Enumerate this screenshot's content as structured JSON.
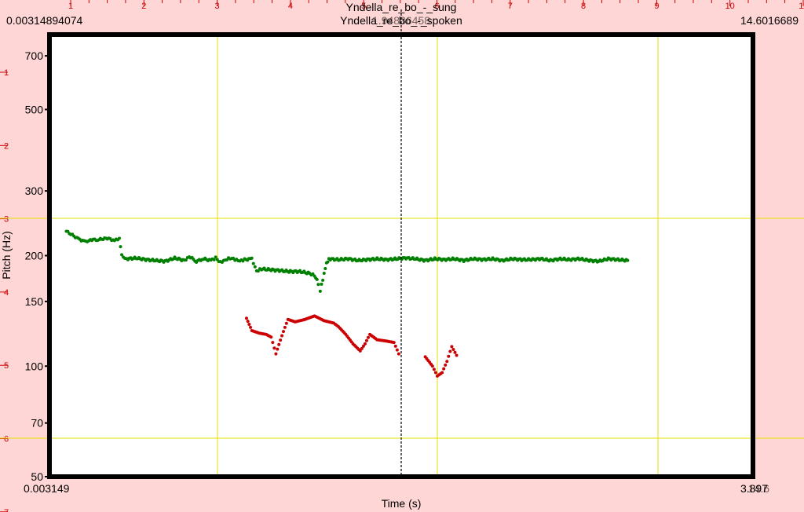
{
  "chart_data": {
    "type": "scatter",
    "title_lines": [
      "Yndella_re_bo_-_sung",
      "Yndella_re_bo_-_spoken"
    ],
    "cursor_time_label": "1.94836458",
    "top_left_time": "0.00314894074",
    "top_right_time": "14.6016689",
    "bottom_left_time": "0.003149",
    "bottom_right_time": "3.897",
    "bottom_right_time_overlap": "14.6",
    "xlabel": "Time (s)",
    "ylabel": "Pitch (Hz)",
    "y_scale": "log",
    "ylim": [
      50,
      800
    ],
    "y_ticks": [
      {
        "value": 50,
        "label": "50"
      },
      {
        "value": 70,
        "label": "70"
      },
      {
        "value": 100,
        "label": "100"
      },
      {
        "value": 150,
        "label": "150"
      },
      {
        "value": 200,
        "label": "200"
      },
      {
        "value": 300,
        "label": "300"
      },
      {
        "value": 500,
        "label": "500"
      },
      {
        "value": 700,
        "label": "700"
      }
    ],
    "top_ruler_labels": [
      "1",
      "2",
      "3",
      "4",
      "5",
      "6",
      "7",
      "8",
      "9",
      "10",
      "11"
    ],
    "left_ruler_labels": [
      "1",
      "2",
      "3",
      "4",
      "5",
      "6",
      "7"
    ],
    "grid": true,
    "series": [
      {
        "color": "#008000",
        "points": [
          [
            0.35,
            233
          ],
          [
            0.6,
            222
          ],
          [
            0.75,
            218
          ],
          [
            0.85,
            221
          ],
          [
            1.0,
            221
          ],
          [
            1.2,
            223
          ],
          [
            1.35,
            220
          ],
          [
            1.45,
            222
          ],
          [
            1.5,
            200
          ],
          [
            1.6,
            196
          ],
          [
            1.8,
            197
          ],
          [
            2.0,
            195
          ],
          [
            2.2,
            194
          ],
          [
            2.4,
            193
          ],
          [
            2.6,
            197
          ],
          [
            2.8,
            194
          ],
          [
            2.9,
            199
          ],
          [
            3.05,
            193
          ],
          [
            3.2,
            196
          ],
          [
            3.35,
            194
          ],
          [
            3.45,
            197
          ],
          [
            3.55,
            192
          ],
          [
            3.65,
            195
          ],
          [
            3.75,
            197
          ],
          [
            3.85,
            195
          ],
          [
            3.95,
            193
          ],
          [
            4.05,
            195
          ],
          [
            4.2,
            196
          ],
          [
            4.3,
            182
          ],
          [
            4.4,
            184
          ],
          [
            4.6,
            183
          ],
          [
            4.8,
            182
          ],
          [
            5.0,
            181
          ],
          [
            5.2,
            181
          ],
          [
            5.4,
            179
          ],
          [
            5.5,
            177
          ],
          [
            5.58,
            168
          ],
          [
            5.62,
            160
          ],
          [
            5.7,
            178
          ],
          [
            5.75,
            190
          ],
          [
            5.8,
            196
          ],
          [
            6.0,
            195
          ],
          [
            6.2,
            196
          ],
          [
            6.4,
            194
          ],
          [
            6.6,
            195
          ],
          [
            6.8,
            196
          ],
          [
            7.0,
            195
          ],
          [
            7.2,
            196
          ],
          [
            7.4,
            197
          ],
          [
            7.6,
            196
          ],
          [
            7.8,
            194
          ],
          [
            8.0,
            196
          ],
          [
            8.2,
            195
          ],
          [
            8.4,
            196
          ],
          [
            8.6,
            194
          ],
          [
            8.8,
            196
          ],
          [
            9.0,
            195
          ],
          [
            9.2,
            196
          ],
          [
            9.4,
            194
          ],
          [
            9.6,
            196
          ],
          [
            9.8,
            195
          ],
          [
            10.0,
            195
          ],
          [
            10.2,
            196
          ],
          [
            10.4,
            194
          ],
          [
            10.6,
            196
          ],
          [
            10.8,
            195
          ],
          [
            11.0,
            196
          ],
          [
            11.2,
            194
          ],
          [
            11.4,
            193
          ],
          [
            11.6,
            196
          ],
          [
            11.8,
            195
          ],
          [
            12.0,
            194
          ]
        ]
      },
      {
        "color": "#cc0000",
        "points": [
          [
            4.09,
            135
          ],
          [
            4.2,
            125
          ],
          [
            4.35,
            123
          ],
          [
            4.5,
            122
          ],
          [
            4.6,
            120
          ],
          [
            4.7,
            108
          ],
          [
            4.95,
            134
          ],
          [
            5.1,
            132
          ],
          [
            5.3,
            134
          ],
          [
            5.5,
            137
          ],
          [
            5.7,
            133
          ],
          [
            5.9,
            131
          ],
          [
            6.0,
            128
          ],
          [
            6.15,
            122
          ],
          [
            6.3,
            115
          ],
          [
            6.45,
            110
          ],
          [
            6.55,
            115
          ],
          [
            6.65,
            122
          ],
          [
            6.8,
            118
          ],
          [
            7.0,
            117
          ],
          [
            7.15,
            116
          ],
          [
            7.25,
            108
          ],
          [
            7.8,
            106
          ],
          [
            7.95,
            100
          ],
          [
            8.05,
            94
          ],
          [
            8.15,
            96
          ],
          [
            8.25,
            103
          ],
          [
            8.35,
            113
          ],
          [
            8.45,
            107
          ]
        ]
      }
    ]
  }
}
